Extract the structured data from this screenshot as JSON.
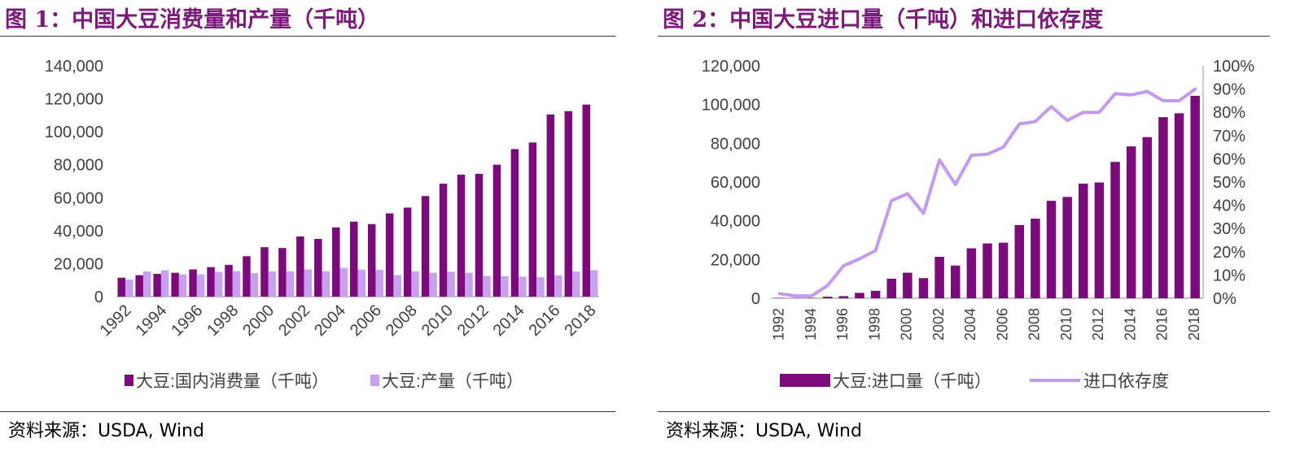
{
  "figures": [
    {
      "title": "图 1：中国大豆消费量和产量（千吨）",
      "source_label": "资料来源：",
      "source_text": "USDA, Wind"
    },
    {
      "title": "图 2：中国大豆进口量（千吨）和进口依存度",
      "source_label": "资料来源：",
      "source_text": "USDA, Wind"
    }
  ],
  "colors": {
    "title": "#7b1a7b",
    "consumption": "#7b0b7b",
    "production": "#c9a0f0",
    "import_bar": "#7b0b7b",
    "dependence_line": "#c49af0"
  },
  "chart_data": [
    {
      "type": "bar",
      "title": "中国大豆消费量和产量（千吨）",
      "categories": [
        "1992",
        "1993",
        "1994",
        "1995",
        "1996",
        "1997",
        "1998",
        "1999",
        "2000",
        "2001",
        "2002",
        "2003",
        "2004",
        "2005",
        "2006",
        "2007",
        "2008",
        "2009",
        "2010",
        "2011",
        "2012",
        "2013",
        "2014",
        "2015",
        "2016",
        "2017",
        "2018"
      ],
      "x_tick_labels": [
        "1992",
        "1994",
        "1996",
        "1998",
        "2000",
        "2002",
        "2004",
        "2006",
        "2008",
        "2010",
        "2012",
        "2014",
        "2016",
        "2018"
      ],
      "y_ticks": [
        "0",
        "20,000",
        "40,000",
        "60,000",
        "80,000",
        "100,000",
        "120,000",
        "140,000"
      ],
      "ylim": [
        0,
        140000
      ],
      "legend_position": "bottom",
      "series": [
        {
          "name": "大豆:国内消费量（千吨）",
          "values": [
            11500,
            13000,
            13800,
            14500,
            16500,
            17900,
            19300,
            24500,
            30000,
            29500,
            36500,
            35000,
            42000,
            45500,
            44000,
            50500,
            54000,
            61000,
            68500,
            74000,
            74500,
            80000,
            89500,
            93500,
            110500,
            112500,
            116500
          ]
        },
        {
          "name": "大豆:产量（千吨）",
          "values": [
            10300,
            15300,
            16000,
            13500,
            13500,
            15000,
            15500,
            14300,
            15400,
            15400,
            16500,
            15400,
            17400,
            16400,
            16200,
            13000,
            15400,
            14500,
            15100,
            14500,
            12600,
            12400,
            12150,
            11800,
            12900,
            15300,
            16000
          ]
        }
      ]
    },
    {
      "type": "bar+line",
      "title": "中国大豆进口量（千吨）和进口依存度",
      "categories": [
        "1992",
        "1993",
        "1994",
        "1995",
        "1996",
        "1997",
        "1998",
        "1999",
        "2000",
        "2001",
        "2002",
        "2003",
        "2004",
        "2005",
        "2006",
        "2007",
        "2008",
        "2009",
        "2010",
        "2011",
        "2012",
        "2013",
        "2014",
        "2015",
        "2016",
        "2017",
        "2018"
      ],
      "x_tick_labels": [
        "1992",
        "1994",
        "1996",
        "1998",
        "2000",
        "2002",
        "2004",
        "2006",
        "2008",
        "2010",
        "2012",
        "2014",
        "2016",
        "2018"
      ],
      "y_ticks": [
        "0",
        "20,000",
        "40,000",
        "60,000",
        "80,000",
        "100,000",
        "120,000"
      ],
      "y2_ticks": [
        "0%",
        "10%",
        "20%",
        "30%",
        "40%",
        "50%",
        "60%",
        "70%",
        "80%",
        "90%",
        "100%"
      ],
      "ylim": [
        0,
        120000
      ],
      "y2lim": [
        0,
        1
      ],
      "legend_position": "bottom",
      "series": [
        {
          "name": "大豆:进口量（千吨）",
          "type": "bar",
          "axis": "left",
          "values": [
            200,
            100,
            150,
            800,
            1100,
            2800,
            3850,
            10100,
            13200,
            10400,
            21400,
            16900,
            25800,
            28300,
            28700,
            37800,
            41100,
            50300,
            52300,
            59200,
            59800,
            70400,
            78400,
            83200,
            93500,
            95500,
            104500
          ]
        },
        {
          "name": "进口依存度",
          "type": "line",
          "axis": "right",
          "values": [
            0.02,
            0.01,
            0.01,
            0.055,
            0.14,
            0.17,
            0.205,
            0.42,
            0.45,
            0.365,
            0.595,
            0.49,
            0.615,
            0.62,
            0.65,
            0.75,
            0.76,
            0.825,
            0.765,
            0.8,
            0.8,
            0.88,
            0.875,
            0.89,
            0.85,
            0.85,
            0.9
          ]
        }
      ]
    }
  ]
}
